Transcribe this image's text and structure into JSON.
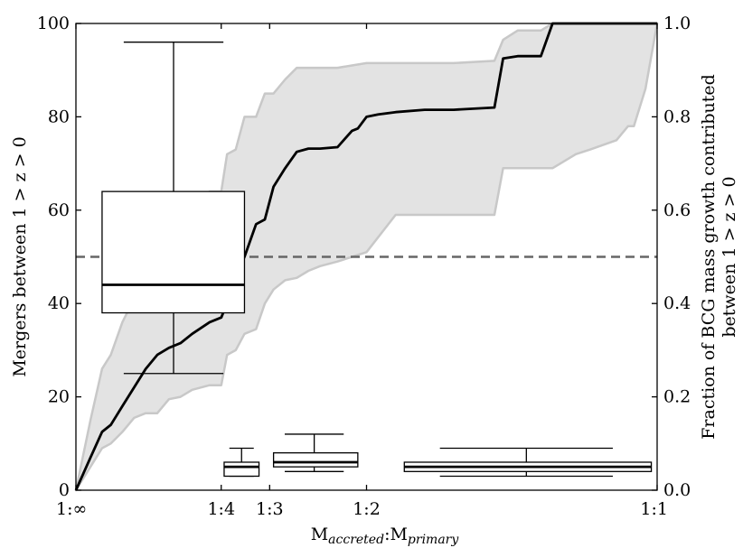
{
  "chart_data": {
    "type": "line",
    "left_axis": {
      "label": "Mergers between 1 > z > 0",
      "ylim": [
        0,
        100
      ],
      "ticks": [
        0,
        20,
        40,
        60,
        80,
        100
      ],
      "tick_labels": [
        "0",
        "20",
        "40",
        "60",
        "80",
        "100"
      ]
    },
    "right_axis": {
      "label_line1": "Fraction of BCG mass growth contributed",
      "label_line2": "between 1 > z > 0",
      "ylim": [
        0.0,
        1.0
      ],
      "ticks": [
        0.0,
        0.2,
        0.4,
        0.6,
        0.8,
        1.0
      ],
      "tick_labels": [
        "0.0",
        "0.2",
        "0.4",
        "0.6",
        "0.8",
        "1.0"
      ]
    },
    "x_axis": {
      "label_main": "M",
      "label_sub1": "accreted",
      "label_sep": ":M",
      "label_sub2": "primary",
      "xlim": [
        0.0,
        1.0
      ],
      "ticks": [
        {
          "x": 0.0,
          "label": "1:∞"
        },
        {
          "x": 0.25,
          "label": "1:4"
        },
        {
          "x": 0.3333,
          "label": "1:3"
        },
        {
          "x": 0.5,
          "label": "1:2"
        },
        {
          "x": 1.0,
          "label": "1:1"
        }
      ]
    },
    "reference_line": {
      "y_right": 0.5,
      "style": "dashed",
      "color": "#666666"
    },
    "colors": {
      "line": "#000000",
      "band_fill": "#e3e3e3",
      "band_edge": "#c8c8c8",
      "ref": "#666666"
    },
    "series": [
      {
        "axis": "right",
        "style": "solid",
        "x": [
          0.0,
          0.025,
          0.045,
          0.06,
          0.08,
          0.1,
          0.12,
          0.14,
          0.16,
          0.18,
          0.2,
          0.23,
          0.25,
          0.26,
          0.275,
          0.29,
          0.31,
          0.325,
          0.34,
          0.36,
          0.38,
          0.4,
          0.42,
          0.45,
          0.475,
          0.485,
          0.5,
          0.52,
          0.55,
          0.6,
          0.65,
          0.72,
          0.735,
          0.76,
          0.8,
          0.82,
          1.0
        ],
        "y": [
          0.0,
          0.07,
          0.125,
          0.14,
          0.18,
          0.22,
          0.26,
          0.29,
          0.305,
          0.315,
          0.335,
          0.36,
          0.37,
          0.4,
          0.46,
          0.5,
          0.57,
          0.58,
          0.65,
          0.69,
          0.725,
          0.732,
          0.732,
          0.735,
          0.77,
          0.775,
          0.8,
          0.805,
          0.81,
          0.815,
          0.815,
          0.82,
          0.925,
          0.93,
          0.93,
          1.0,
          1.0
        ]
      }
    ],
    "band": {
      "axis": "right",
      "x": [
        0.0,
        0.025,
        0.045,
        0.06,
        0.08,
        0.1,
        0.12,
        0.14,
        0.16,
        0.18,
        0.2,
        0.23,
        0.25,
        0.26,
        0.275,
        0.29,
        0.31,
        0.325,
        0.34,
        0.36,
        0.38,
        0.4,
        0.42,
        0.45,
        0.475,
        0.5,
        0.55,
        0.6,
        0.65,
        0.72,
        0.735,
        0.76,
        0.8,
        0.82,
        0.86,
        0.885,
        0.93,
        0.95,
        0.96,
        0.98,
        1.0
      ],
      "upper": [
        0.0,
        0.15,
        0.26,
        0.29,
        0.36,
        0.41,
        0.44,
        0.45,
        0.47,
        0.58,
        0.585,
        0.64,
        0.64,
        0.72,
        0.73,
        0.8,
        0.8,
        0.85,
        0.85,
        0.88,
        0.905,
        0.905,
        0.905,
        0.905,
        0.91,
        0.915,
        0.915,
        0.915,
        0.915,
        0.92,
        0.965,
        0.985,
        0.985,
        1.0,
        1.0,
        1.0,
        1.0,
        1.0,
        1.0,
        1.0,
        1.0
      ],
      "lower": [
        0.0,
        0.05,
        0.09,
        0.1,
        0.125,
        0.155,
        0.165,
        0.165,
        0.195,
        0.2,
        0.215,
        0.225,
        0.225,
        0.29,
        0.3,
        0.335,
        0.345,
        0.4,
        0.43,
        0.45,
        0.455,
        0.47,
        0.48,
        0.49,
        0.5,
        0.51,
        0.59,
        0.59,
        0.59,
        0.59,
        0.69,
        0.69,
        0.69,
        0.69,
        0.72,
        0.73,
        0.75,
        0.78,
        0.78,
        0.86,
        1.0
      ]
    },
    "boxplots": [
      {
        "axis": "left",
        "x_min": 0.045,
        "x_max": 0.29,
        "whisker_x": 0.168,
        "whisker_low": 25,
        "q1": 38,
        "median": 44,
        "q3": 64,
        "whisker_high": 96
      },
      {
        "axis": "left",
        "x_min": 0.255,
        "x_max": 0.315,
        "whisker_x": 0.285,
        "whisker_low": 3,
        "q1": 3,
        "median": 5,
        "q3": 6,
        "whisker_high": 9
      },
      {
        "axis": "left",
        "x_min": 0.34,
        "x_max": 0.485,
        "whisker_x": 0.41,
        "whisker_low": 4,
        "q1": 5,
        "median": 6,
        "q3": 8,
        "whisker_high": 12
      },
      {
        "axis": "left",
        "x_min": 0.565,
        "x_max": 0.99,
        "whisker_x": 0.775,
        "whisker_low": 3,
        "q1": 4,
        "median": 5,
        "q3": 6,
        "whisker_high": 9
      }
    ]
  }
}
